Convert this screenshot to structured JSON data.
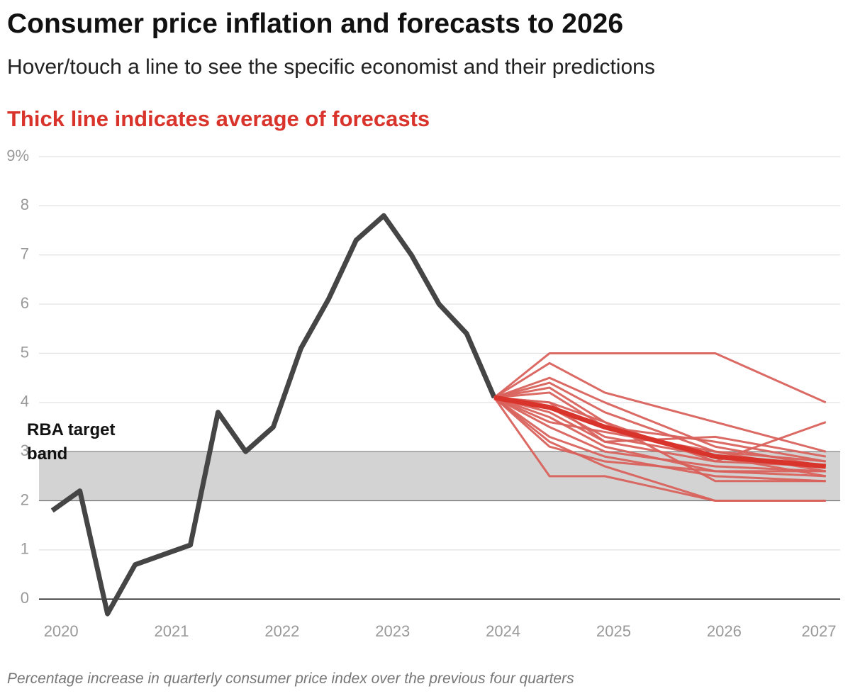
{
  "chart_data": {
    "type": "line",
    "title": "Consumer price inflation and forecasts to 2026",
    "subtitle": "Hover/touch a line to see the specific economist and their predictions",
    "note": "Thick line indicates average of forecasts",
    "caption": "Percentage increase in quarterly consumer price index over the previous four quarters",
    "band": [
      2,
      3
    ],
    "band_label": "RBA target band",
    "band_color": "#d3d3d3",
    "xlim": [
      2019.8,
      2027.05
    ],
    "xticks": [
      2020,
      2021,
      2022,
      2023,
      2024,
      2025,
      2026,
      2027
    ],
    "ylim": [
      -0.4,
      9
    ],
    "yticks": [
      0,
      1,
      2,
      3,
      4,
      5,
      6,
      7,
      8,
      {
        "value": 9,
        "label": "9%"
      }
    ],
    "grid": true,
    "history": {
      "color": "#454545",
      "x": [
        2019.92,
        2020.17,
        2020.42,
        2020.67,
        2020.92,
        2021.17,
        2021.42,
        2021.67,
        2021.92,
        2022.17,
        2022.42,
        2022.67,
        2022.92,
        2023.17,
        2023.42,
        2023.67,
        2023.92
      ],
      "values": [
        1.8,
        2.2,
        -0.3,
        0.7,
        0.9,
        1.1,
        3.8,
        3.0,
        3.5,
        5.1,
        6.1,
        7.3,
        7.8,
        7.0,
        6.0,
        5.4,
        4.1
      ]
    },
    "forecast_x": [
      2023.92,
      2024.42,
      2024.92,
      2025.92,
      2026.92
    ],
    "forecast_color": "#d9615c",
    "series": [
      {
        "values": [
          4.1,
          5.0,
          5.0,
          5.0,
          4.0
        ]
      },
      {
        "values": [
          4.1,
          4.8,
          4.2,
          3.6,
          3.0
        ]
      },
      {
        "values": [
          4.1,
          4.5,
          4.0,
          3.1,
          2.7
        ]
      },
      {
        "values": [
          4.1,
          4.4,
          3.8,
          3.0,
          2.6
        ]
      },
      {
        "values": [
          4.1,
          4.2,
          3.5,
          3.2,
          2.8
        ]
      },
      {
        "values": [
          4.1,
          4.0,
          3.6,
          2.8,
          3.6
        ]
      },
      {
        "values": [
          4.1,
          3.9,
          3.3,
          2.9,
          2.5
        ]
      },
      {
        "values": [
          4.1,
          3.8,
          3.2,
          3.3,
          2.9
        ]
      },
      {
        "values": [
          4.1,
          3.7,
          3.1,
          2.6,
          2.5
        ]
      },
      {
        "values": [
          4.1,
          3.5,
          3.0,
          2.7,
          2.6
        ]
      },
      {
        "values": [
          4.1,
          3.3,
          2.9,
          2.5,
          2.4
        ]
      },
      {
        "values": [
          4.1,
          3.2,
          2.7,
          2.0,
          2.0
        ]
      },
      {
        "values": [
          4.1,
          2.5,
          2.5,
          2.0,
          2.0
        ]
      },
      {
        "values": [
          4.1,
          3.6,
          3.4,
          3.0,
          2.8
        ]
      },
      {
        "values": [
          4.1,
          4.0,
          3.2,
          2.8,
          2.7
        ]
      },
      {
        "values": [
          4.1,
          4.3,
          3.6,
          2.4,
          2.4
        ]
      },
      {
        "values": [
          4.1,
          3.1,
          2.8,
          2.6,
          2.6
        ]
      }
    ],
    "average": {
      "color": "#d9342b",
      "values": [
        4.1,
        3.9,
        3.5,
        2.9,
        2.7
      ]
    }
  }
}
